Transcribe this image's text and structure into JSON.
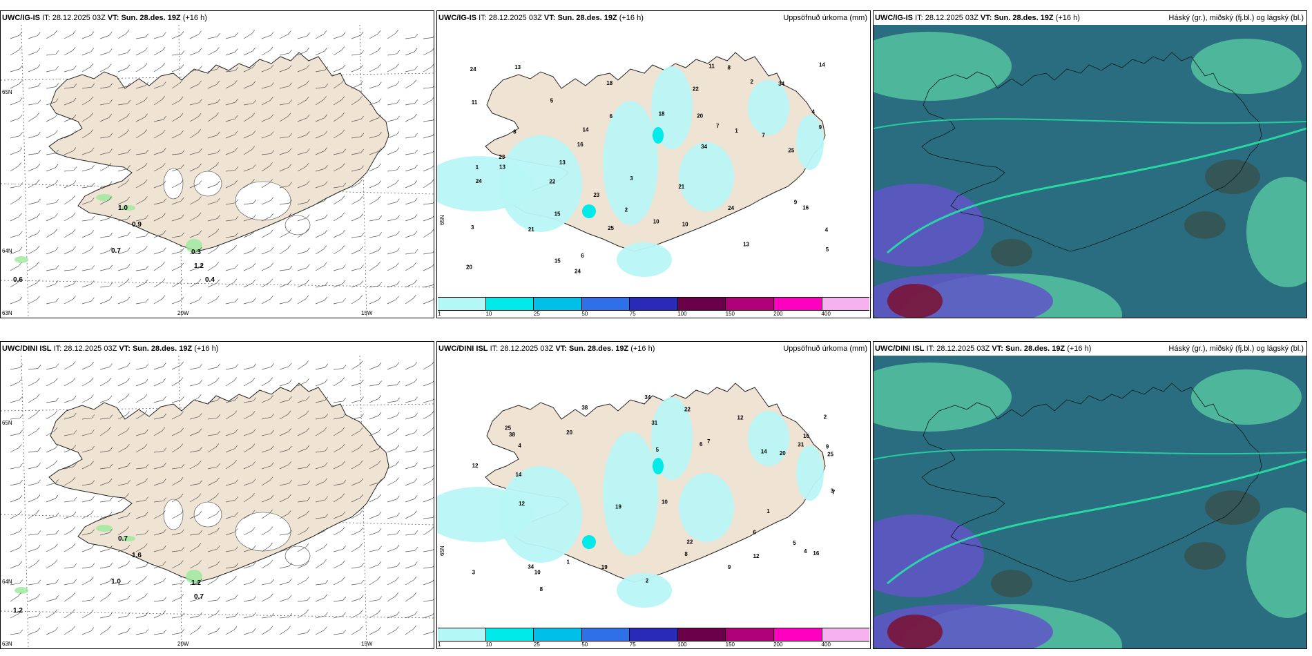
{
  "panels": [
    {
      "model": "UWC/IG-IS",
      "it_label": "IT:",
      "it": "28.12.2025 03Z",
      "vt_label": "VT:",
      "vt": "Sun. 28.des. 19Z",
      "lead": "(+16 h)",
      "title": "",
      "type": "wind",
      "values": [
        "1.0",
        "0.9",
        "0.7",
        "0.6",
        "0.3",
        "1.2",
        "0.4"
      ],
      "lat_labels": [
        "65N",
        "64N",
        "63N"
      ],
      "lon_labels": [
        "20W",
        "15W"
      ]
    },
    {
      "model": "UWC/IG-IS",
      "it_label": "IT:",
      "it": "28.12.2025 03Z",
      "vt_label": "VT:",
      "vt": "Sun. 28.des. 19Z",
      "lead": "(+16 h)",
      "title": "Uppsöfnuð úrkoma (mm)",
      "type": "precip",
      "values": [
        "1",
        "3",
        "2",
        "4",
        "16",
        "25",
        "21",
        "23",
        "18",
        "20",
        "15",
        "34",
        "13",
        "11",
        "24",
        "22",
        "13",
        "24",
        "9",
        "8",
        "10",
        "5",
        "7",
        "6",
        "14"
      ],
      "lat_labels": [
        "65N"
      ],
      "lon_labels": []
    },
    {
      "model": "UWC/IG-IS",
      "it_label": "IT:",
      "it": "28.12.2025 03Z",
      "vt_label": "VT:",
      "vt": "Sun. 28.des. 19Z",
      "lead": "(+16 h)",
      "title": "Háský (gr.), miðský (fj.bl.) og lágský (bl.)",
      "type": "cloud",
      "values": [],
      "lat_labels": [],
      "lon_labels": []
    },
    {
      "model": "UWC/DINI ISL",
      "it_label": "IT:",
      "it": "28.12.2025 03Z",
      "vt_label": "VT:",
      "vt": "Sun. 28.des. 19Z",
      "lead": "(+16 h)",
      "title": "",
      "type": "wind",
      "values": [
        "0.7",
        "1.6",
        "1.0",
        "1.2",
        "1.2",
        "0.7"
      ],
      "lat_labels": [
        "65N",
        "64N",
        "63N"
      ],
      "lon_labels": [
        "20W",
        "15W"
      ]
    },
    {
      "model": "UWC/DINI ISL",
      "it_label": "IT:",
      "it": "28.12.2025 03Z",
      "vt_label": "VT:",
      "vt": "Sun. 28.des. 19Z",
      "lead": "(+16 h)",
      "title": "Uppsöfnuð úrkoma (mm)",
      "type": "precip",
      "values": [
        "1",
        "2",
        "3",
        "4",
        "5",
        "6",
        "12",
        "14",
        "16",
        "19",
        "31",
        "34",
        "22",
        "20",
        "12",
        "25",
        "38",
        "10",
        "8",
        "9",
        "7"
      ],
      "lat_labels": [
        "65N"
      ],
      "lon_labels": []
    },
    {
      "model": "UWC/DINI ISL",
      "it_label": "IT:",
      "it": "28.12.2025 03Z",
      "vt_label": "VT:",
      "vt": "Sun. 28.des. 19Z",
      "lead": "(+16 h)",
      "title": "Háský (gr.), miðský (fj.bl.) og lágský (bl.)",
      "type": "cloud",
      "values": [],
      "lat_labels": [],
      "lon_labels": []
    }
  ],
  "colorbar": {
    "ticks": [
      "1",
      "10",
      "25",
      "50",
      "75",
      "100",
      "150",
      "200",
      "400"
    ],
    "colors": [
      "#b3f7f7",
      "#00eaea",
      "#00c0e8",
      "#2f6fe8",
      "#2a2ab8",
      "#6a004a",
      "#b0007a",
      "#ff00c0",
      "#f5b0f0"
    ]
  },
  "colors": {
    "land": "#efe3d4",
    "precip_light": "#b8f5f5",
    "cloud_high": "#55c4a0",
    "cloud_mid": "#2a6d80",
    "cloud_low": "#6055c8"
  }
}
